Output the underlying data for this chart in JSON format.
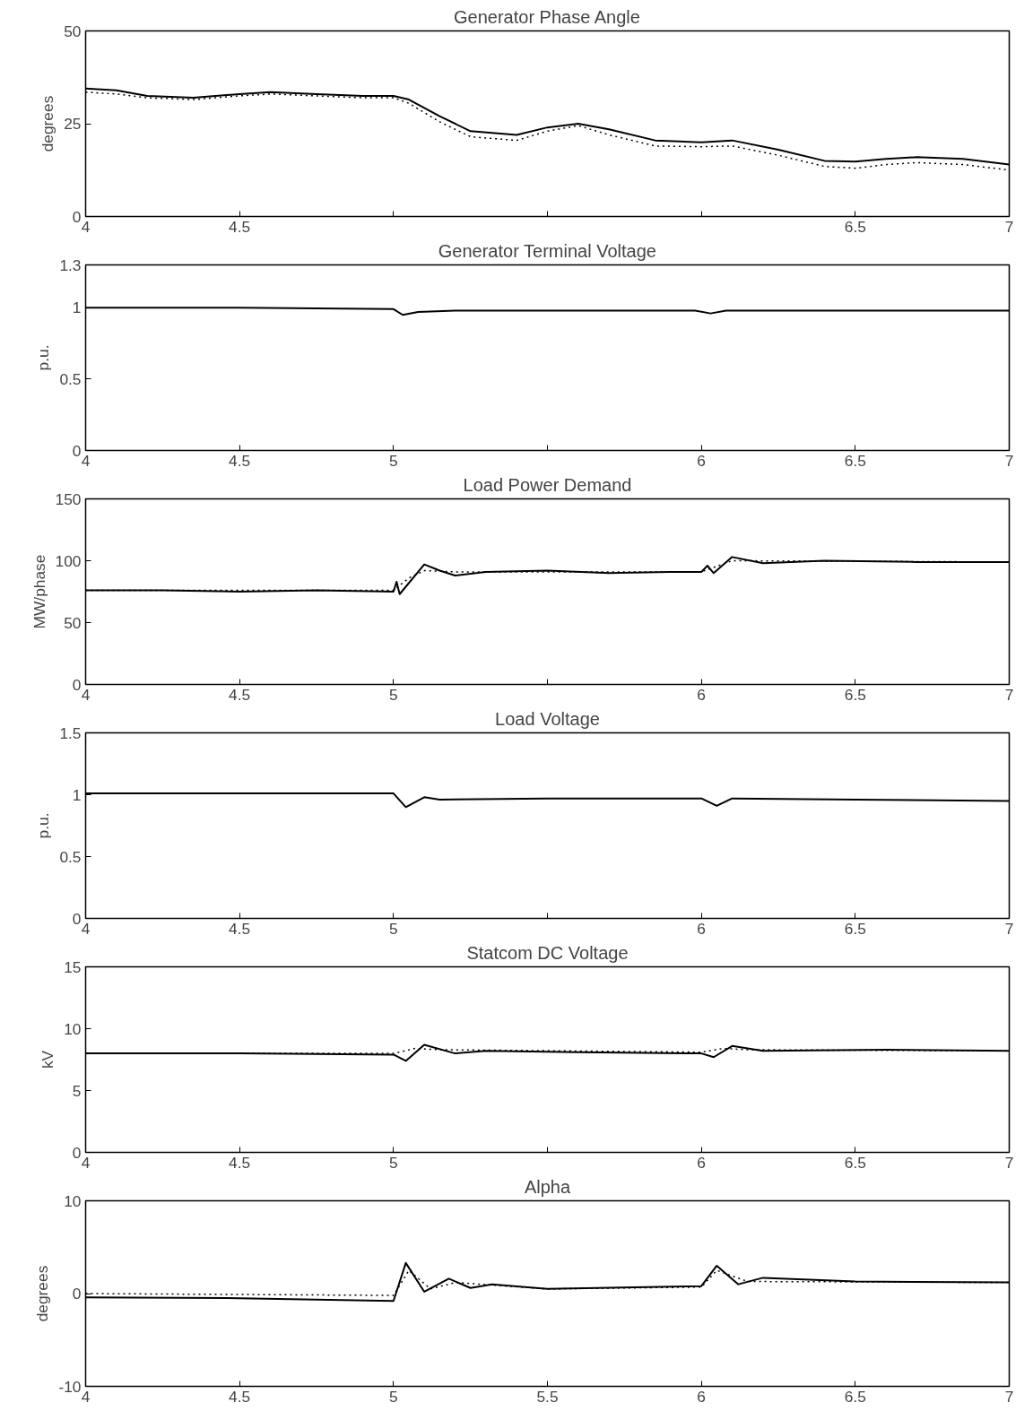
{
  "chart_data": [
    {
      "type": "line",
      "title": "Generator Phase Angle",
      "ylabel": "degrees",
      "xlim": [
        4,
        7
      ],
      "ylim": [
        0,
        50
      ],
      "yticks": [
        0,
        25,
        50
      ],
      "grid": false,
      "xticks": [
        4,
        4.5,
        {
          "value": 5,
          "label": null
        },
        {
          "value": 5.5,
          "label": null
        },
        {
          "value": 6,
          "label": null
        },
        6.5,
        7
      ],
      "series": [
        {
          "color": "#000000",
          "line_style": "solid",
          "x": [
            4,
            4.1,
            4.2,
            4.35,
            4.5,
            4.6,
            4.75,
            4.9,
            5.0,
            5.05,
            5.15,
            5.25,
            5.4,
            5.5,
            5.6,
            5.7,
            5.85,
            6.0,
            6.1,
            6.25,
            6.4,
            6.5,
            6.6,
            6.7,
            6.85,
            7.0
          ],
          "values": [
            34.5,
            34,
            32.5,
            32,
            33,
            33.5,
            33,
            32.5,
            32.5,
            31.5,
            27,
            23,
            22,
            24,
            25,
            23.5,
            20.5,
            20,
            20.5,
            18,
            15,
            14.8,
            15.5,
            16,
            15.5,
            14
          ]
        },
        {
          "color": "#000000",
          "line_style": "dotted",
          "x": [
            4,
            4.1,
            4.2,
            4.35,
            4.5,
            4.6,
            4.75,
            4.9,
            5.0,
            5.05,
            5.15,
            5.25,
            5.4,
            5.5,
            5.6,
            5.7,
            5.85,
            6.0,
            6.1,
            6.25,
            6.4,
            6.5,
            6.6,
            6.7,
            6.85,
            7.0
          ],
          "values": [
            33.5,
            33,
            32,
            31.5,
            32.5,
            33,
            32.5,
            32,
            32,
            30.5,
            25.5,
            21.5,
            20.5,
            23,
            24.5,
            22,
            19,
            18.8,
            19,
            16.5,
            13.5,
            13,
            14,
            14.5,
            14,
            12.5
          ]
        }
      ]
    },
    {
      "type": "line",
      "title": "Generator Terminal Voltage",
      "ylabel": "p.u.",
      "xlim": [
        4,
        7
      ],
      "ylim": [
        0,
        1.3
      ],
      "yticks": [
        0,
        0.5,
        1,
        1.3
      ],
      "grid": false,
      "xticks": [
        4,
        4.5,
        5,
        {
          "value": 5.5,
          "label": null
        },
        6,
        6.5,
        7
      ],
      "series": [
        {
          "color": "#000000",
          "line_style": "solid",
          "x": [
            4,
            4.5,
            5.0,
            5.03,
            5.08,
            5.2,
            5.5,
            5.98,
            6.03,
            6.08,
            6.5,
            7
          ],
          "values": [
            1,
            1,
            0.99,
            0.95,
            0.97,
            0.98,
            0.98,
            0.98,
            0.96,
            0.98,
            0.98,
            0.98
          ]
        }
      ]
    },
    {
      "type": "line",
      "title": "Load Power Demand",
      "ylabel": "MW/phase",
      "xlim": [
        4,
        7
      ],
      "ylim": [
        0,
        150
      ],
      "yticks": [
        0,
        50,
        100,
        150
      ],
      "grid": false,
      "xticks": [
        4,
        4.5,
        5,
        {
          "value": 5.5,
          "label": null
        },
        6,
        6.5,
        7
      ],
      "series": [
        {
          "color": "#000000",
          "line_style": "solid",
          "x": [
            4,
            4.25,
            4.5,
            4.75,
            5.0,
            5.01,
            5.02,
            5.1,
            5.15,
            5.2,
            5.3,
            5.5,
            5.7,
            5.9,
            6.0,
            6.02,
            6.04,
            6.1,
            6.2,
            6.4,
            6.7,
            7.0
          ],
          "values": [
            76,
            76,
            75,
            76,
            75,
            83,
            73,
            97,
            92,
            88,
            91,
            92,
            90,
            91,
            91,
            96,
            90,
            103,
            98,
            100,
            99,
            99
          ]
        },
        {
          "color": "#000000",
          "line_style": "dotted",
          "x": [
            4,
            5.0,
            5.05,
            5.1,
            5.2,
            6.0,
            6.1,
            7.0
          ],
          "values": [
            76,
            76,
            86,
            92,
            91,
            91,
            100,
            99
          ]
        }
      ]
    },
    {
      "type": "line",
      "title": "Load Voltage",
      "ylabel": "p.u.",
      "xlim": [
        4,
        7
      ],
      "ylim": [
        0,
        1.5
      ],
      "yticks": [
        0,
        0.5,
        1,
        1.5
      ],
      "grid": false,
      "xticks": [
        4,
        4.5,
        5,
        {
          "value": 5.5,
          "label": null
        },
        6,
        6.5,
        7
      ],
      "series": [
        {
          "color": "#000000",
          "line_style": "solid",
          "x": [
            4,
            4.5,
            5.0,
            5.04,
            5.1,
            5.15,
            5.5,
            6.0,
            6.05,
            6.1,
            6.5,
            7
          ],
          "values": [
            1.01,
            1.01,
            1.01,
            0.9,
            0.98,
            0.96,
            0.97,
            0.97,
            0.91,
            0.97,
            0.96,
            0.95
          ]
        }
      ]
    },
    {
      "type": "line",
      "title": "Statcom DC Voltage",
      "ylabel": "kV",
      "xlim": [
        4,
        7
      ],
      "ylim": [
        0,
        15
      ],
      "yticks": [
        0,
        5,
        10,
        15
      ],
      "grid": false,
      "xticks": [
        4,
        4.5,
        5,
        {
          "value": 5.5,
          "label": null
        },
        6,
        6.5,
        7
      ],
      "series": [
        {
          "color": "#000000",
          "line_style": "solid",
          "x": [
            4,
            4.5,
            5.0,
            5.04,
            5.1,
            5.2,
            5.3,
            5.6,
            6.0,
            6.04,
            6.1,
            6.2,
            6.6,
            7
          ],
          "values": [
            8,
            8,
            7.9,
            7.4,
            8.7,
            8.0,
            8.2,
            8.1,
            8.0,
            7.7,
            8.6,
            8.2,
            8.3,
            8.2
          ]
        },
        {
          "color": "#000000",
          "line_style": "dotted",
          "x": [
            4,
            5.0,
            5.07,
            5.15,
            6.0,
            6.07,
            6.15,
            7
          ],
          "values": [
            8,
            8,
            8.4,
            8.3,
            8.1,
            8.4,
            8.3,
            8.2
          ]
        }
      ]
    },
    {
      "type": "line",
      "title": "Alpha",
      "ylabel": "degrees",
      "xlim": [
        4,
        7
      ],
      "ylim": [
        -10,
        10
      ],
      "yticks": [
        -10,
        0,
        10
      ],
      "grid": false,
      "xticks": [
        4,
        4.5,
        5,
        5.5,
        6,
        6.5,
        7
      ],
      "series": [
        {
          "color": "#000000",
          "line_style": "solid",
          "x": [
            4,
            4.5,
            5.0,
            5.04,
            5.1,
            5.18,
            5.25,
            5.32,
            5.5,
            6.0,
            6.05,
            6.12,
            6.2,
            6.5,
            7
          ],
          "values": [
            -0.4,
            -0.5,
            -0.8,
            3.3,
            0.2,
            1.6,
            0.6,
            1.0,
            0.5,
            0.8,
            3.0,
            1.0,
            1.7,
            1.3,
            1.2
          ]
        },
        {
          "color": "#000000",
          "line_style": "dotted",
          "x": [
            4,
            5.0,
            5.05,
            5.12,
            5.2,
            5.5,
            6.0,
            6.05,
            6.15,
            7
          ],
          "values": [
            0,
            -0.2,
            2.5,
            0.5,
            1.2,
            0.5,
            0.7,
            2.5,
            1.3,
            1.2
          ]
        }
      ]
    }
  ]
}
